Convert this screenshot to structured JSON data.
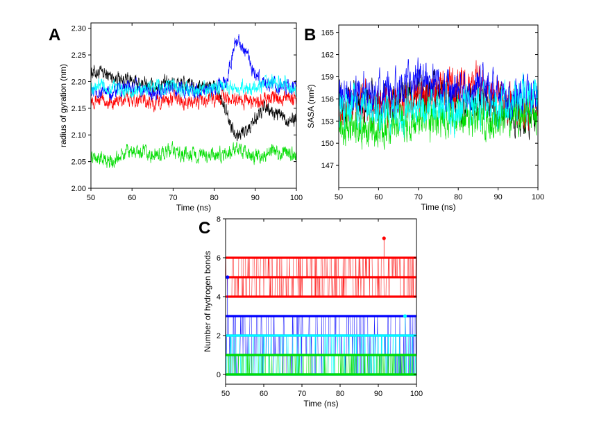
{
  "figure": {
    "panels": [
      "A",
      "B",
      "C"
    ]
  },
  "chart_data": [
    {
      "panel": "A",
      "type": "line",
      "xlabel": "Time (ns)",
      "ylabel": "radius of gyration (nm)",
      "xlim": [
        50,
        100
      ],
      "ylim": [
        2.0,
        2.31
      ],
      "xticks": [
        50,
        60,
        70,
        80,
        90,
        100
      ],
      "yticks": [
        "2.00",
        "2.05",
        "2.10",
        "2.15",
        "2.20",
        "2.25",
        "2.30"
      ],
      "grid": false,
      "series": [
        {
          "color": "#000000",
          "x": [
            50,
            55,
            60,
            65,
            70,
            75,
            80,
            82,
            84,
            86,
            88,
            90,
            92,
            95,
            98,
            100
          ],
          "y": [
            2.22,
            2.21,
            2.2,
            2.19,
            2.2,
            2.19,
            2.19,
            2.16,
            2.12,
            2.1,
            2.11,
            2.13,
            2.15,
            2.14,
            2.13,
            2.13
          ]
        },
        {
          "color": "#ff0000",
          "x": [
            50,
            55,
            60,
            65,
            70,
            75,
            80,
            85,
            90,
            95,
            100
          ],
          "y": [
            2.17,
            2.16,
            2.17,
            2.16,
            2.17,
            2.16,
            2.17,
            2.17,
            2.16,
            2.17,
            2.17
          ]
        },
        {
          "color": "#00dd00",
          "x": [
            50,
            55,
            60,
            65,
            70,
            75,
            80,
            85,
            90,
            95,
            100
          ],
          "y": [
            2.06,
            2.05,
            2.07,
            2.06,
            2.07,
            2.06,
            2.06,
            2.07,
            2.06,
            2.07,
            2.06
          ]
        },
        {
          "color": "#0000ff",
          "x": [
            50,
            55,
            60,
            65,
            70,
            75,
            80,
            83,
            85,
            86,
            88,
            90,
            92,
            95,
            100
          ],
          "y": [
            2.18,
            2.18,
            2.19,
            2.18,
            2.19,
            2.18,
            2.19,
            2.2,
            2.27,
            2.28,
            2.25,
            2.21,
            2.2,
            2.19,
            2.19
          ]
        },
        {
          "color": "#00ffff",
          "x": [
            50,
            55,
            60,
            65,
            70,
            75,
            80,
            85,
            90,
            95,
            100
          ],
          "y": [
            2.19,
            2.19,
            2.18,
            2.19,
            2.19,
            2.18,
            2.19,
            2.19,
            2.19,
            2.2,
            2.19
          ]
        }
      ]
    },
    {
      "panel": "B",
      "type": "line",
      "xlabel": "Time (ns)",
      "ylabel": "SASA (nm²)",
      "xlim": [
        50,
        100
      ],
      "ylim": [
        144,
        166
      ],
      "xticks": [
        50,
        60,
        70,
        80,
        90,
        100
      ],
      "yticks": [
        "147",
        "150",
        "153",
        "156",
        "159",
        "162",
        "165"
      ],
      "grid": false,
      "series": [
        {
          "color": "#000000",
          "x": [
            50,
            55,
            60,
            65,
            70,
            75,
            80,
            85,
            90,
            95,
            100
          ],
          "y": [
            156,
            156,
            155,
            156,
            157,
            157,
            156,
            155,
            155,
            154,
            154
          ]
        },
        {
          "color": "#ff0000",
          "x": [
            50,
            55,
            60,
            65,
            70,
            75,
            80,
            85,
            90,
            95,
            100
          ],
          "y": [
            155,
            156,
            155,
            155,
            156,
            157,
            158,
            158,
            156,
            155,
            155
          ]
        },
        {
          "color": "#00dd00",
          "x": [
            50,
            55,
            60,
            65,
            70,
            75,
            80,
            85,
            90,
            95,
            100
          ],
          "y": [
            153,
            152,
            152,
            153,
            153,
            153,
            154,
            153,
            153,
            154,
            154
          ]
        },
        {
          "color": "#0000ff",
          "x": [
            50,
            55,
            60,
            65,
            70,
            75,
            80,
            85,
            90,
            95,
            100
          ],
          "y": [
            156,
            157,
            157,
            157,
            159,
            158,
            157,
            158,
            157,
            156,
            156
          ]
        },
        {
          "color": "#00ffff",
          "x": [
            50,
            55,
            60,
            65,
            70,
            75,
            80,
            85,
            90,
            95,
            100
          ],
          "y": [
            155,
            155,
            154,
            154,
            155,
            155,
            154,
            155,
            155,
            156,
            156
          ]
        }
      ]
    },
    {
      "panel": "C",
      "type": "scatter",
      "xlabel": "Time (ns)",
      "ylabel": "Number of hydrogen bonds",
      "xlim": [
        50,
        100
      ],
      "ylim": [
        -0.5,
        8
      ],
      "xticks": [
        50,
        60,
        70,
        80,
        90,
        100
      ],
      "yticks": [
        "0",
        "2",
        "4",
        "6",
        "8"
      ],
      "grid": false,
      "series": [
        {
          "color": "#ff0000",
          "levels": [
            6,
            5,
            4
          ],
          "outliers": [
            {
              "x": 91.5,
              "y": 7
            }
          ]
        },
        {
          "color": "#0000ff",
          "levels": [
            3,
            2,
            1,
            0
          ],
          "outliers": [
            {
              "x": 50.5,
              "y": 5
            }
          ]
        },
        {
          "color": "#00ffff",
          "levels": [
            2,
            1,
            0
          ],
          "outliers": [
            {
              "x": 97,
              "y": 3
            }
          ]
        },
        {
          "color": "#00dd00",
          "levels": [
            1,
            0
          ],
          "outliers": []
        }
      ]
    }
  ]
}
